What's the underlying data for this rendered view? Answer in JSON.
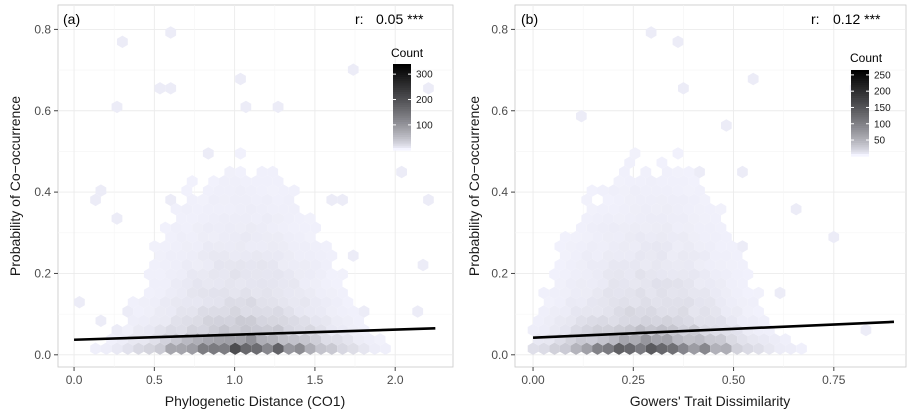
{
  "figure": {
    "panels": [
      {
        "tag": "(a)",
        "stat_label": "r:",
        "stat_value": "0.05 ***",
        "legend_title": "Count",
        "legend_ticks": [
          "300",
          "200",
          "100"
        ]
      },
      {
        "tag": "(b)",
        "stat_label": "r:",
        "stat_value": "0.12 ***",
        "legend_title": "Count",
        "legend_ticks": [
          "250",
          "200",
          "150",
          "100",
          "50"
        ]
      }
    ]
  },
  "chart_data": [
    {
      "type": "heatmap",
      "subtype": "hexbin with linear fit",
      "title": "(a)",
      "annotation": "r:  0.05 ***",
      "xlabel": "Phylogenetic Distance (CO1)",
      "ylabel": "Probability of Co−occurrence",
      "xlim": [
        -0.1,
        2.36
      ],
      "ylim": [
        -0.03,
        0.86
      ],
      "x_ticks": [
        0.0,
        0.5,
        1.0,
        1.5,
        2.0
      ],
      "x_tick_labels": [
        "0.0",
        "0.5",
        "1.0",
        "1.5",
        "2.0"
      ],
      "y_ticks": [
        0.0,
        0.2,
        0.4,
        0.6,
        0.8
      ],
      "y_tick_labels": [
        "0.0",
        "0.2",
        "0.4",
        "0.6",
        "0.8"
      ],
      "grid": true,
      "legend": {
        "title": "Count",
        "placement": "top-right",
        "ticks": [
          100,
          200,
          300
        ],
        "min": 1,
        "max": 340
      },
      "color_scale": {
        "low": "#f4f4ff",
        "high": "#000000"
      },
      "density": {
        "x_center": 1.05,
        "x_spread": 0.42,
        "x_range": [
          0.0,
          2.25
        ],
        "count_max": 340
      },
      "fit_line": {
        "x": [
          0.0,
          2.25
        ],
        "y": [
          0.037,
          0.065
        ]
      }
    },
    {
      "type": "heatmap",
      "subtype": "hexbin with linear fit",
      "title": "(b)",
      "annotation": "r:  0.12 ***",
      "xlabel": "Gowers' Trait Dissimilarity",
      "ylabel": "Probability of Co−occurrence",
      "xlim": [
        -0.045,
        0.93
      ],
      "ylim": [
        -0.03,
        0.86
      ],
      "x_ticks": [
        0.0,
        0.25,
        0.5,
        0.75
      ],
      "x_tick_labels": [
        "0.00",
        "0.25",
        "0.50",
        "0.75"
      ],
      "y_ticks": [
        0.0,
        0.2,
        0.4,
        0.6,
        0.8
      ],
      "y_tick_labels": [
        "0.0",
        "0.2",
        "0.4",
        "0.6",
        "0.8"
      ],
      "grid": true,
      "legend": {
        "title": "Count",
        "placement": "top-right",
        "ticks": [
          50,
          100,
          150,
          200,
          250
        ],
        "min": 1,
        "max": 265
      },
      "color_scale": {
        "low": "#f4f4ff",
        "high": "#000000"
      },
      "density": {
        "x_center": 0.29,
        "x_spread": 0.17,
        "x_range": [
          0.0,
          0.9
        ],
        "count_max": 265
      },
      "fit_line": {
        "x": [
          0.0,
          0.9
        ],
        "y": [
          0.042,
          0.081
        ]
      }
    }
  ]
}
